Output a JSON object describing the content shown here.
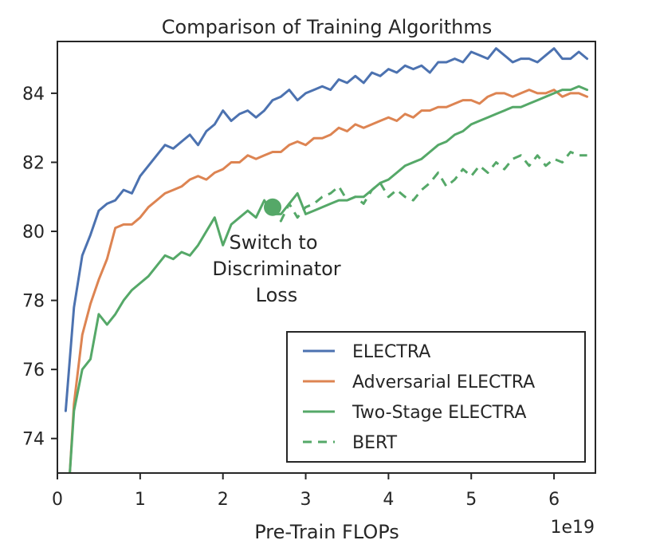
{
  "chart_data": {
    "type": "line",
    "title": "Comparison of Training Algorithms",
    "xlabel": "Pre-Train FLOPs",
    "ylabel": "",
    "x_scale_note": "1e19",
    "xlim": [
      0,
      6.5
    ],
    "ylim": [
      73,
      85.5
    ],
    "xticks": [
      0,
      1,
      2,
      3,
      4,
      5,
      6
    ],
    "yticks": [
      74,
      76,
      78,
      80,
      82,
      84
    ],
    "grid": false,
    "legend_position": "lower-right",
    "annotation": {
      "lines": [
        "Switch to",
        "Discriminator",
        "Loss"
      ],
      "marker_x": 2.6,
      "marker_y": 80.7
    },
    "series": [
      {
        "name": "ELECTRA",
        "color": "#4c72b0",
        "dash": "solid",
        "x": [
          0.1,
          0.2,
          0.3,
          0.4,
          0.5,
          0.6,
          0.7,
          0.8,
          0.9,
          1.0,
          1.1,
          1.2,
          1.3,
          1.4,
          1.5,
          1.6,
          1.7,
          1.8,
          1.9,
          2.0,
          2.1,
          2.2,
          2.3,
          2.4,
          2.5,
          2.6,
          2.7,
          2.8,
          2.9,
          3.0,
          3.1,
          3.2,
          3.3,
          3.4,
          3.5,
          3.6,
          3.7,
          3.8,
          3.9,
          4.0,
          4.1,
          4.2,
          4.3,
          4.4,
          4.5,
          4.6,
          4.7,
          4.8,
          4.9,
          5.0,
          5.1,
          5.2,
          5.3,
          5.4,
          5.5,
          5.6,
          5.7,
          5.8,
          5.9,
          6.0,
          6.1,
          6.2,
          6.3,
          6.4
        ],
        "y": [
          74.8,
          77.8,
          79.3,
          79.9,
          80.6,
          80.8,
          80.9,
          81.2,
          81.1,
          81.6,
          81.9,
          82.2,
          82.5,
          82.4,
          82.6,
          82.8,
          82.5,
          82.9,
          83.1,
          83.5,
          83.2,
          83.4,
          83.5,
          83.3,
          83.5,
          83.8,
          83.9,
          84.1,
          83.8,
          84.0,
          84.1,
          84.2,
          84.1,
          84.4,
          84.3,
          84.5,
          84.3,
          84.6,
          84.5,
          84.7,
          84.6,
          84.8,
          84.7,
          84.8,
          84.6,
          84.9,
          84.9,
          85.0,
          84.9,
          85.2,
          85.1,
          85.0,
          85.3,
          85.1,
          84.9,
          85.0,
          85.0,
          84.9,
          85.1,
          85.3,
          85.0,
          85.0,
          85.2,
          85.0
        ]
      },
      {
        "name": "Adversarial ELECTRA",
        "color": "#dd8452",
        "dash": "solid",
        "x": [
          0.15,
          0.2,
          0.3,
          0.4,
          0.5,
          0.6,
          0.7,
          0.8,
          0.9,
          1.0,
          1.1,
          1.2,
          1.3,
          1.4,
          1.5,
          1.6,
          1.7,
          1.8,
          1.9,
          2.0,
          2.1,
          2.2,
          2.3,
          2.4,
          2.5,
          2.6,
          2.7,
          2.8,
          2.9,
          3.0,
          3.1,
          3.2,
          3.3,
          3.4,
          3.5,
          3.6,
          3.7,
          3.8,
          3.9,
          4.0,
          4.1,
          4.2,
          4.3,
          4.4,
          4.5,
          4.6,
          4.7,
          4.8,
          4.9,
          5.0,
          5.1,
          5.2,
          5.3,
          5.4,
          5.5,
          5.6,
          5.7,
          5.8,
          5.9,
          6.0,
          6.1,
          6.2,
          6.3,
          6.4
        ],
        "y": [
          73.0,
          75.0,
          77.0,
          77.9,
          78.6,
          79.2,
          80.1,
          80.2,
          80.2,
          80.4,
          80.7,
          80.9,
          81.1,
          81.2,
          81.3,
          81.5,
          81.6,
          81.5,
          81.7,
          81.8,
          82.0,
          82.0,
          82.2,
          82.1,
          82.2,
          82.3,
          82.3,
          82.5,
          82.6,
          82.5,
          82.7,
          82.7,
          82.8,
          83.0,
          82.9,
          83.1,
          83.0,
          83.1,
          83.2,
          83.3,
          83.2,
          83.4,
          83.3,
          83.5,
          83.5,
          83.6,
          83.6,
          83.7,
          83.8,
          83.8,
          83.7,
          83.9,
          84.0,
          84.0,
          83.9,
          84.0,
          84.1,
          84.0,
          84.0,
          84.1,
          83.9,
          84.0,
          84.0,
          83.9
        ]
      },
      {
        "name": "Two-Stage ELECTRA",
        "color": "#55a868",
        "dash": "solid",
        "x": [
          0.15,
          0.2,
          0.3,
          0.4,
          0.5,
          0.6,
          0.7,
          0.8,
          0.9,
          1.0,
          1.1,
          1.2,
          1.3,
          1.4,
          1.5,
          1.6,
          1.7,
          1.8,
          1.9,
          2.0,
          2.1,
          2.2,
          2.3,
          2.4,
          2.5,
          2.6,
          2.7,
          2.8,
          2.9,
          3.0,
          3.1,
          3.2,
          3.3,
          3.4,
          3.5,
          3.6,
          3.7,
          3.8,
          3.9,
          4.0,
          4.1,
          4.2,
          4.3,
          4.4,
          4.5,
          4.6,
          4.7,
          4.8,
          4.9,
          5.0,
          5.1,
          5.2,
          5.3,
          5.4,
          5.5,
          5.6,
          5.7,
          5.8,
          5.9,
          6.0,
          6.1,
          6.2,
          6.3,
          6.4
        ],
        "y": [
          73.0,
          74.8,
          76.0,
          76.3,
          77.6,
          77.3,
          77.6,
          78.0,
          78.3,
          78.5,
          78.7,
          79.0,
          79.3,
          79.2,
          79.4,
          79.3,
          79.6,
          80.0,
          80.4,
          79.6,
          80.2,
          80.4,
          80.6,
          80.4,
          80.9,
          80.5,
          80.5,
          80.8,
          81.1,
          80.5,
          80.6,
          80.7,
          80.8,
          80.9,
          80.9,
          81.0,
          81.0,
          81.2,
          81.4,
          81.5,
          81.7,
          81.9,
          82.0,
          82.1,
          82.3,
          82.5,
          82.6,
          82.8,
          82.9,
          83.1,
          83.2,
          83.3,
          83.4,
          83.5,
          83.6,
          83.6,
          83.7,
          83.8,
          83.9,
          84.0,
          84.1,
          84.1,
          84.2,
          84.1
        ]
      },
      {
        "name": "BERT",
        "color": "#55a868",
        "dash": "dashed",
        "x": [
          2.6,
          2.7,
          2.8,
          2.9,
          3.0,
          3.1,
          3.2,
          3.3,
          3.4,
          3.5,
          3.6,
          3.7,
          3.8,
          3.9,
          4.0,
          4.1,
          4.2,
          4.3,
          4.4,
          4.5,
          4.6,
          4.7,
          4.8,
          4.9,
          5.0,
          5.1,
          5.2,
          5.3,
          5.4,
          5.5,
          5.6,
          5.7,
          5.8,
          5.9,
          6.0,
          6.1,
          6.2,
          6.3,
          6.4
        ],
        "y": [
          80.7,
          80.3,
          80.8,
          80.4,
          80.7,
          80.8,
          81.0,
          81.1,
          81.3,
          80.9,
          81.0,
          80.8,
          81.2,
          81.4,
          81.0,
          81.2,
          81.0,
          80.9,
          81.2,
          81.4,
          81.7,
          81.3,
          81.5,
          81.8,
          81.6,
          81.9,
          81.7,
          82.0,
          81.8,
          82.1,
          82.2,
          81.9,
          82.2,
          81.9,
          82.1,
          82.0,
          82.3,
          82.2,
          82.2
        ]
      }
    ]
  }
}
